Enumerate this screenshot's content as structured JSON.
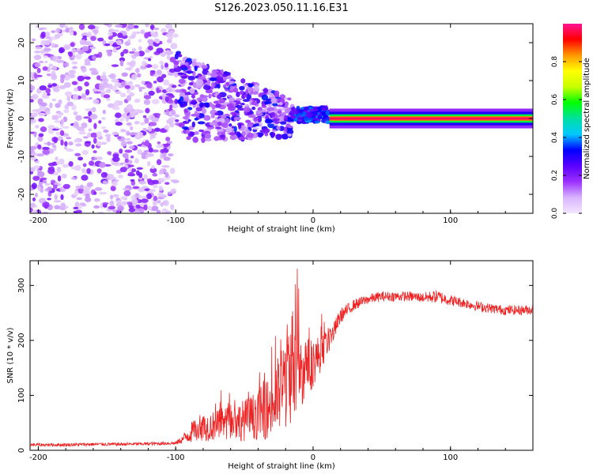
{
  "title": "S126.2023.050.11.16.E31",
  "chart_data": [
    {
      "type": "heatmap",
      "title": "S126.2023.050.11.16.E31",
      "xlabel": "Height of straight line (km)",
      "ylabel": "Frequency (Hz)",
      "xlim": [
        -206,
        160
      ],
      "ylim": [
        -25,
        25
      ],
      "xticks": [
        -200,
        -100,
        0,
        100
      ],
      "yticks": [
        -20,
        -10,
        0,
        10,
        20
      ],
      "colorbar": {
        "label": "Normalized spectral amplitude",
        "range": [
          0,
          1
        ],
        "ticks": [
          "0.0",
          "0.2",
          "0.4",
          "0.6",
          "0.8"
        ],
        "tick_values": [
          0,
          0.2,
          0.4,
          0.6,
          0.8
        ],
        "colormap": [
          "#f2e6ff",
          "#d8b4ff",
          "#9b30ff",
          "#5a00ff",
          "#0000ff",
          "#00c8ff",
          "#00e0a0",
          "#00ff00",
          "#c8ff00",
          "#ffff00",
          "#ff9900",
          "#ff0000",
          "#ff1493"
        ]
      },
      "regions": [
        {
          "x": [
            -206,
            -100
          ],
          "freq_spread": 25,
          "amplitude": "low (0.0-0.2)"
        },
        {
          "x": [
            -100,
            -15
          ],
          "freq_spread": 12,
          "amplitude": "medium (0.1-0.3)"
        },
        {
          "x": [
            -15,
            12
          ],
          "freq_spread": 3,
          "amplitude": "medium-high (0.2-0.5)"
        },
        {
          "x": [
            12,
            160
          ],
          "freq_spread": 1,
          "amplitude": "high (0.6-1.0)"
        }
      ]
    },
    {
      "type": "line",
      "xlabel": "Height of straight line (km)",
      "ylabel": "SNR (10 * v/v)",
      "xlim": [
        -206,
        160
      ],
      "ylim": [
        0,
        345
      ],
      "xticks": [
        -200,
        -100,
        0,
        100
      ],
      "yticks": [
        0,
        100,
        200,
        300
      ],
      "color": "#ee2222",
      "series": [
        {
          "name": "SNR",
          "x": [
            -206,
            -180,
            -160,
            -140,
            -120,
            -100,
            -95,
            -90,
            -85,
            -80,
            -70,
            -60,
            -50,
            -40,
            -30,
            -25,
            -20,
            -15,
            -12,
            -10,
            -5,
            0,
            5,
            10,
            15,
            20,
            30,
            40,
            50,
            60,
            70,
            80,
            90,
            100,
            110,
            120,
            130,
            140,
            150,
            160
          ],
          "y": [
            10,
            10,
            11,
            11,
            12,
            13,
            20,
            30,
            40,
            42,
            45,
            50,
            55,
            65,
            80,
            100,
            130,
            160,
            150,
            140,
            150,
            160,
            175,
            195,
            215,
            245,
            265,
            275,
            280,
            280,
            280,
            278,
            280,
            273,
            268,
            262,
            258,
            255,
            255,
            256
          ],
          "noise": [
            3,
            3,
            3,
            3,
            3,
            3,
            8,
            18,
            22,
            25,
            28,
            32,
            38,
            45,
            60,
            75,
            95,
            110,
            95,
            70,
            55,
            45,
            35,
            25,
            18,
            14,
            10,
            9,
            9,
            9,
            9,
            9,
            12,
            10,
            9,
            9,
            9,
            9,
            9,
            9
          ]
        }
      ]
    }
  ]
}
